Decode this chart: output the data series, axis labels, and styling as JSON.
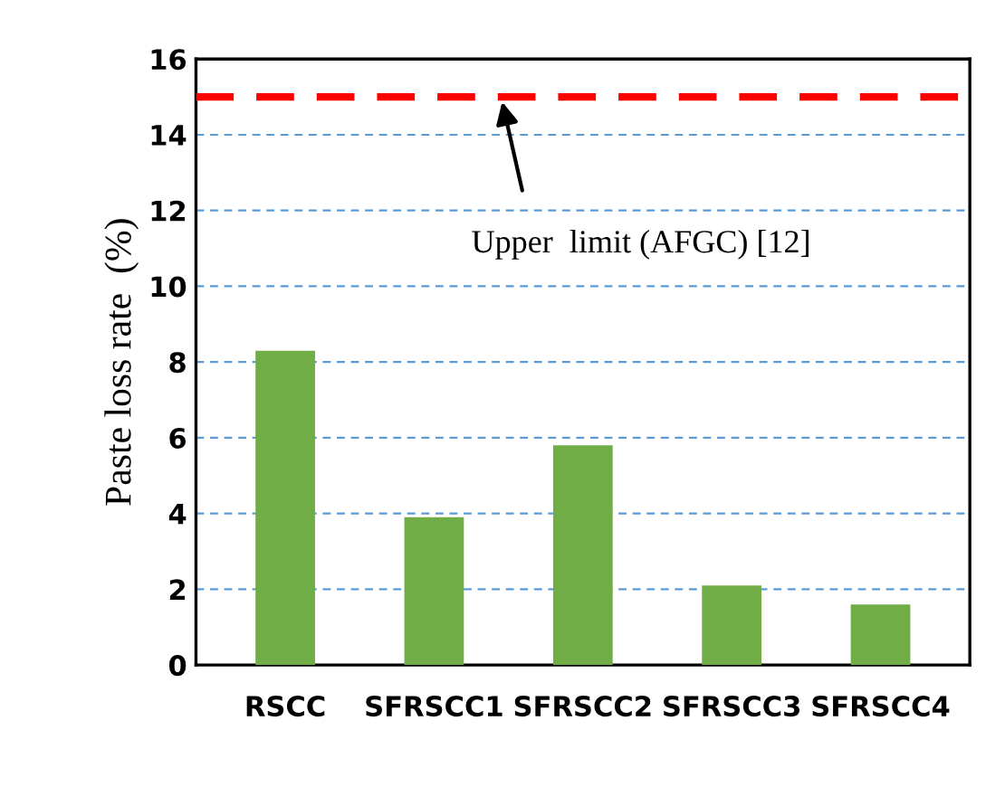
{
  "chart_data": {
    "type": "bar",
    "ylabel": "Paste loss rate  (%)",
    "categories": [
      "RSCC",
      "SFRSCC1",
      "SFRSCC2",
      "SFRSCC3",
      "SFRSCC4"
    ],
    "values": [
      8.3,
      3.9,
      5.8,
      2.1,
      1.6
    ],
    "color": "#70ad47",
    "ylim": [
      0,
      16
    ],
    "yticks": [
      0,
      2,
      4,
      6,
      8,
      10,
      12,
      14,
      16
    ],
    "grid": "y",
    "ref_lines": [
      {
        "axis": "y",
        "value": 15,
        "label": "Upper  limit (AFGC) [12]",
        "color": "#ff0000",
        "line_style": "dashed"
      }
    ]
  }
}
